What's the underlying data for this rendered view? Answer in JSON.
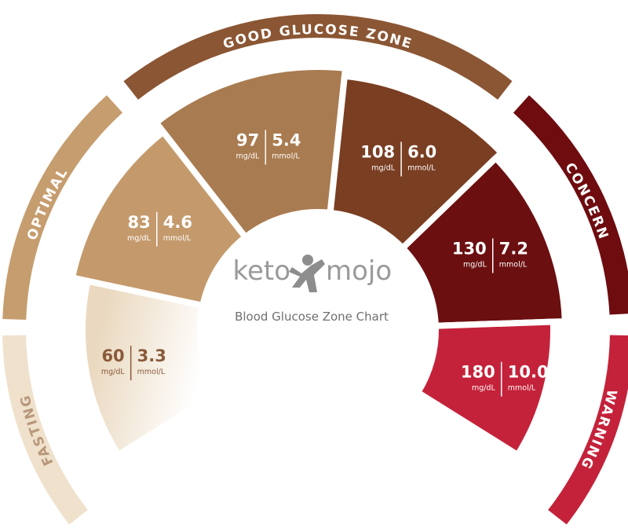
{
  "title": "Blood Glucose Zone Chart",
  "logo": {
    "left": "keto",
    "right": "mojo"
  },
  "zones": [
    {
      "label": "FASTING",
      "color": "#efe1cc",
      "text_color": "#b8977a"
    },
    {
      "label": "OPTIMAL",
      "color": "#c69d6e",
      "text_color": "#ffffff"
    },
    {
      "label": "GOOD GLUCOSE ZONE",
      "color": "#8b5634",
      "text_color": "#ffffff"
    },
    {
      "label": "CONCERN",
      "color": "#6e0c10",
      "text_color": "#ffffff"
    },
    {
      "label": "WARNING",
      "color": "#c4223a",
      "text_color": "#ffffff"
    }
  ],
  "segments": [
    {
      "mg_dl": "60",
      "mg_unit": "mg/dL",
      "mmol": "3.3",
      "mmol_unit": "mmol/L",
      "color": "#ead9c0",
      "text_color": "#8a5a3a"
    },
    {
      "mg_dl": "83",
      "mg_unit": "mg/dL",
      "mmol": "4.6",
      "mmol_unit": "mmol/L",
      "color": "#c49a6c",
      "text_color": "#ffffff"
    },
    {
      "mg_dl": "97",
      "mg_unit": "mg/dL",
      "mmol": "5.4",
      "mmol_unit": "mmol/L",
      "color": "#a97b50",
      "text_color": "#ffffff"
    },
    {
      "mg_dl": "108",
      "mg_unit": "mg/dL",
      "mmol": "6.0",
      "mmol_unit": "mmol/L",
      "color": "#7a3e22",
      "text_color": "#ffffff"
    },
    {
      "mg_dl": "130",
      "mg_unit": "mg/dL",
      "mmol": "7.2",
      "mmol_unit": "mmol/L",
      "color": "#6b0f10",
      "text_color": "#ffffff"
    },
    {
      "mg_dl": "180",
      "mg_unit": "mg/dL",
      "mmol": "10.0",
      "mmol_unit": "mmol/L",
      "color": "#c4223a",
      "text_color": "#ffffff"
    }
  ]
}
